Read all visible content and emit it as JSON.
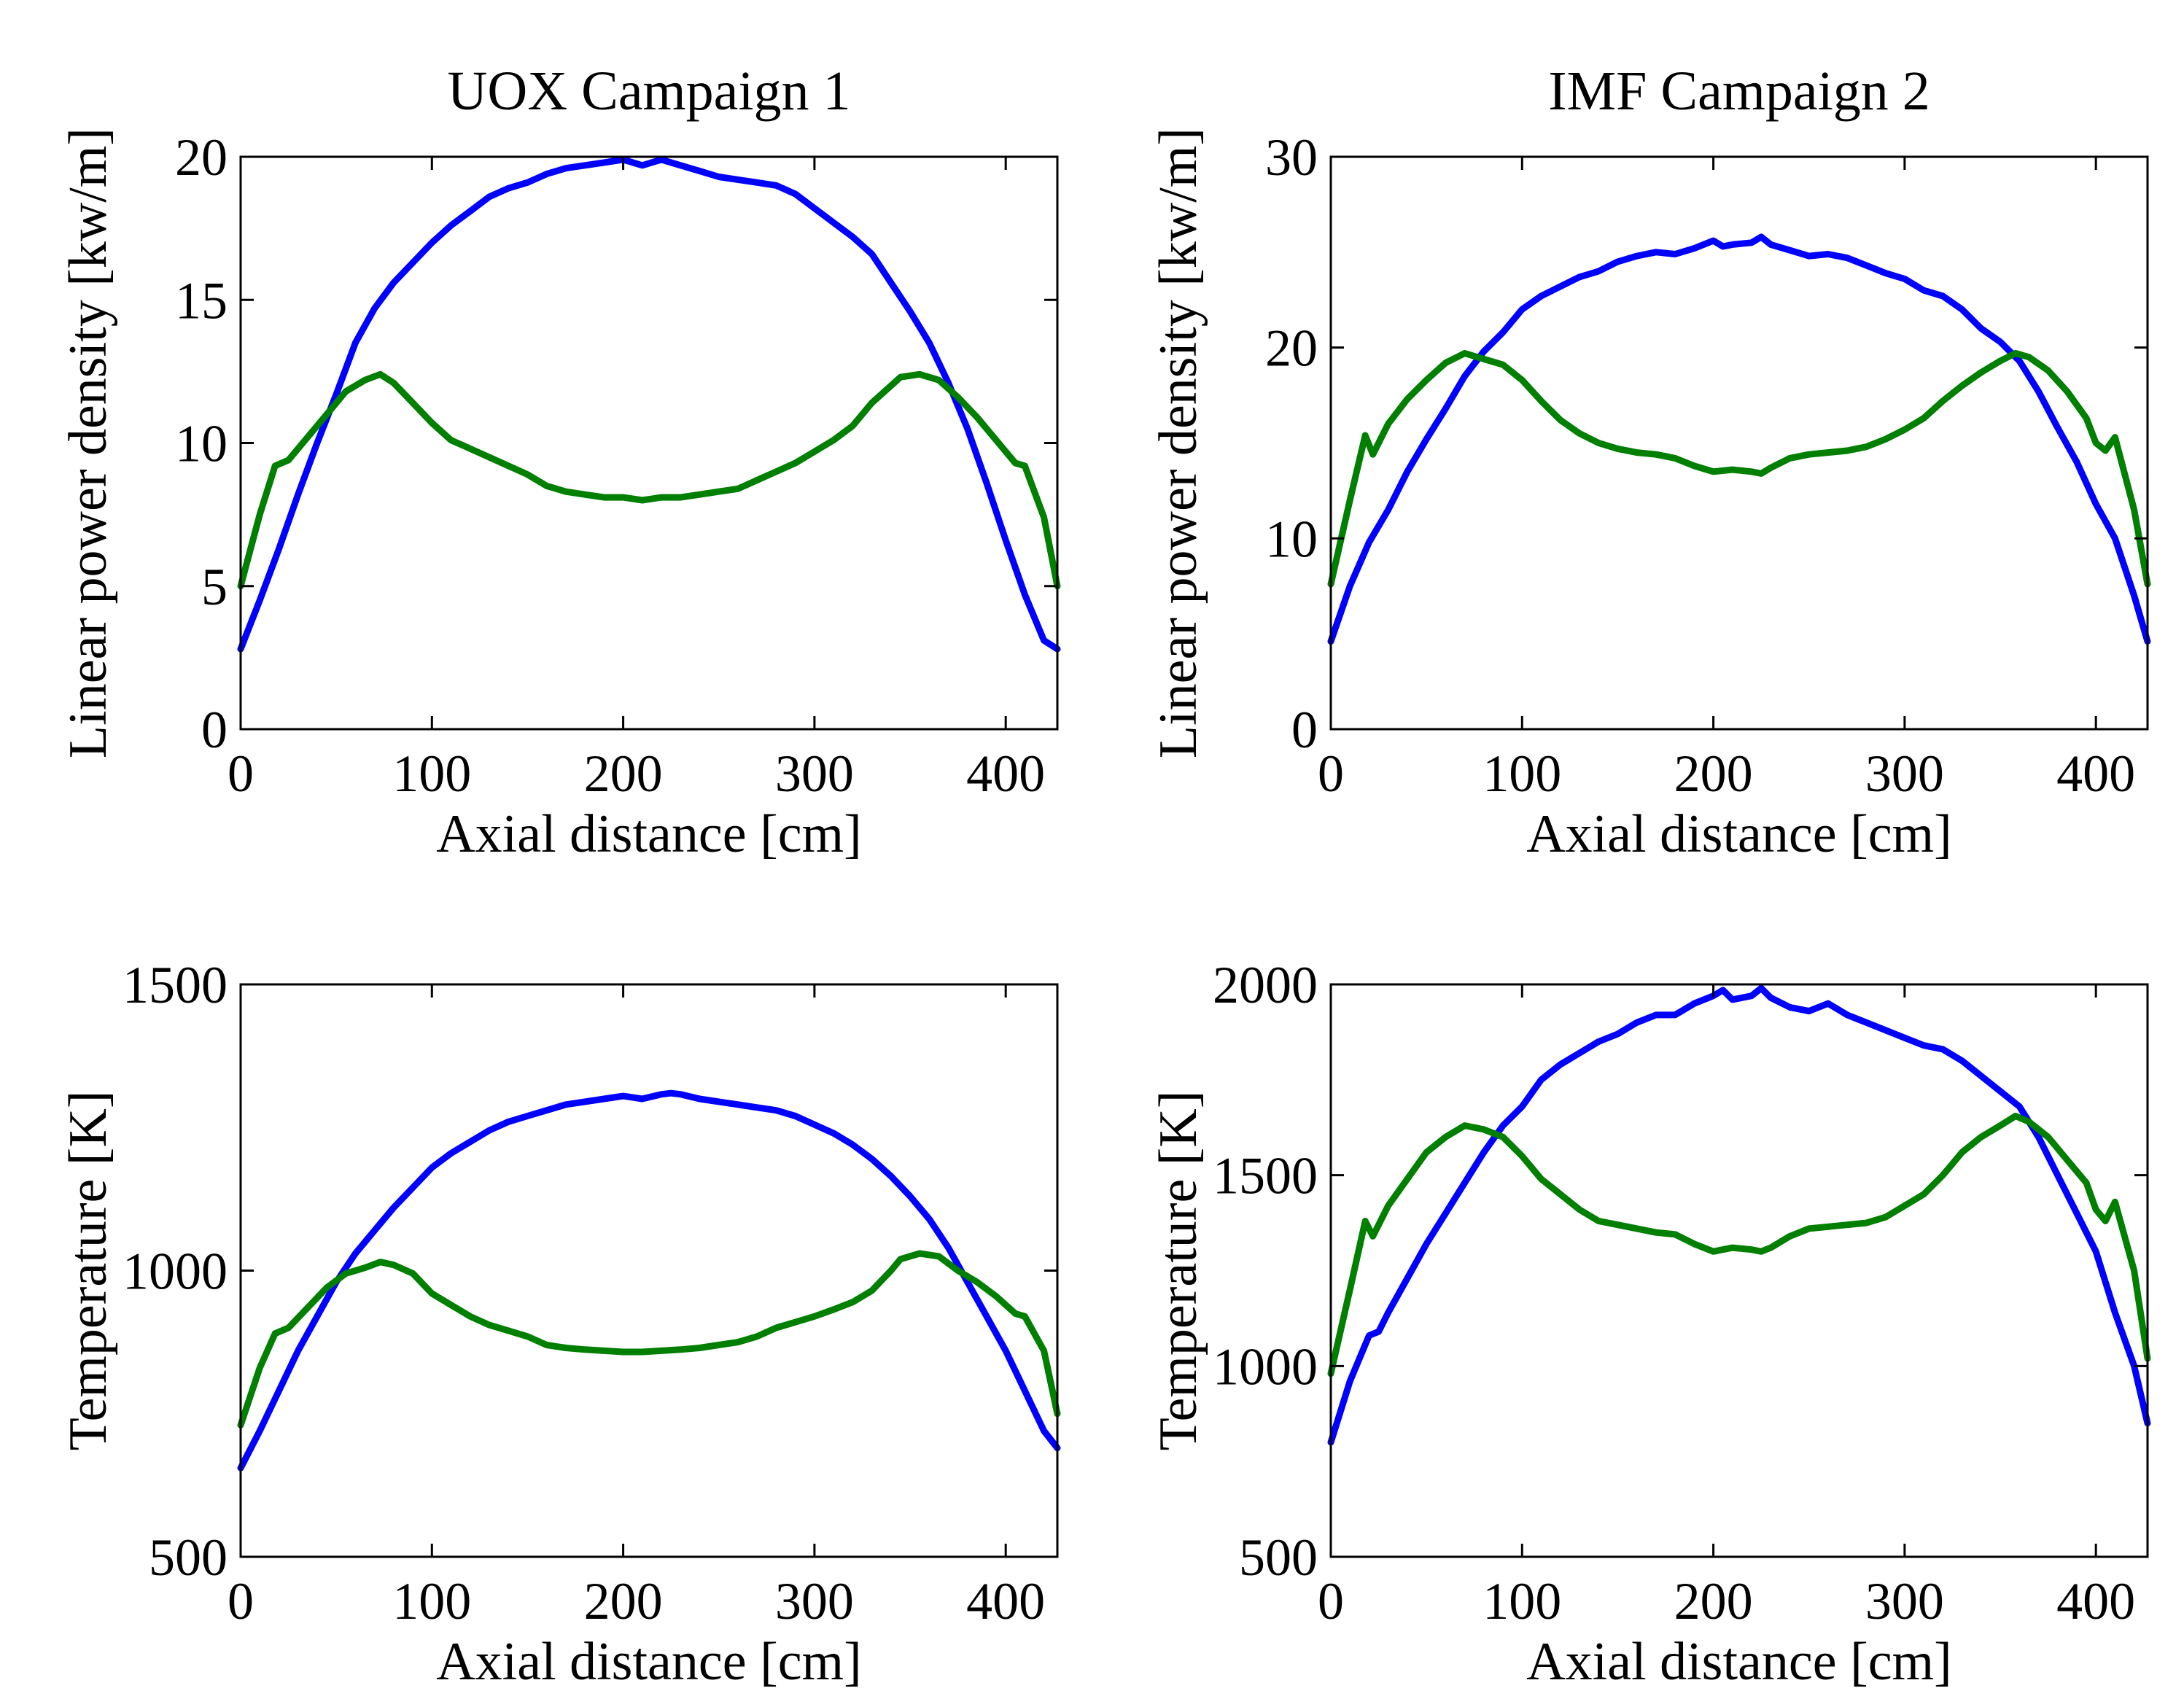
{
  "colors": {
    "blue": "#0000ff",
    "green": "#007f00",
    "axes": "#000000"
  },
  "chart_data": [
    {
      "type": "line",
      "title": "UOX Campaign 1",
      "xlabel": "Axial distance [cm]",
      "ylabel": "Linear power density [kw/m]",
      "xlim": [
        0,
        427
      ],
      "ylim": [
        0,
        20
      ],
      "xticks": [
        0,
        100,
        200,
        300,
        400
      ],
      "xtick_labels": [
        "0",
        "100",
        "200",
        "300",
        "400"
      ],
      "yticks": [
        0,
        5,
        10,
        15,
        20
      ],
      "ytick_labels": [
        "0",
        "5",
        "10",
        "15",
        "20"
      ],
      "grid": false,
      "series": [
        {
          "name": "blue",
          "color": "#0000ff",
          "x": [
            0,
            10,
            20,
            30,
            40,
            50,
            60,
            70,
            80,
            90,
            100,
            110,
            120,
            130,
            140,
            150,
            160,
            170,
            180,
            190,
            200,
            210,
            220,
            230,
            240,
            250,
            260,
            270,
            280,
            290,
            300,
            310,
            320,
            330,
            340,
            350,
            360,
            370,
            380,
            390,
            400,
            410,
            420,
            427
          ],
          "values": [
            2.8,
            4.5,
            6.3,
            8.2,
            10.0,
            11.7,
            13.5,
            14.7,
            15.6,
            16.3,
            17.0,
            17.6,
            18.1,
            18.6,
            18.9,
            19.1,
            19.4,
            19.6,
            19.7,
            19.8,
            19.9,
            19.7,
            19.9,
            19.7,
            19.5,
            19.3,
            19.2,
            19.1,
            19.0,
            18.7,
            18.2,
            17.7,
            17.2,
            16.6,
            15.6,
            14.6,
            13.5,
            12.1,
            10.5,
            8.6,
            6.6,
            4.7,
            3.1,
            2.8
          ]
        },
        {
          "name": "green",
          "color": "#007f00",
          "x": [
            0,
            10,
            18,
            25,
            35,
            45,
            55,
            65,
            73,
            80,
            90,
            100,
            110,
            120,
            130,
            140,
            150,
            160,
            170,
            180,
            190,
            200,
            210,
            220,
            230,
            240,
            250,
            260,
            270,
            280,
            290,
            300,
            310,
            320,
            330,
            340,
            345,
            355,
            365,
            375,
            385,
            395,
            405,
            410,
            420,
            427
          ],
          "values": [
            5.0,
            7.5,
            9.2,
            9.4,
            10.2,
            11.0,
            11.8,
            12.2,
            12.4,
            12.1,
            11.4,
            10.7,
            10.1,
            9.8,
            9.5,
            9.2,
            8.9,
            8.5,
            8.3,
            8.2,
            8.1,
            8.1,
            8.0,
            8.1,
            8.1,
            8.2,
            8.3,
            8.4,
            8.7,
            9.0,
            9.3,
            9.7,
            10.1,
            10.6,
            11.4,
            12.0,
            12.3,
            12.4,
            12.2,
            11.6,
            10.9,
            10.1,
            9.3,
            9.2,
            7.4,
            5.0
          ]
        }
      ]
    },
    {
      "type": "line",
      "title": "IMF Campaign 2",
      "xlabel": "Axial distance [cm]",
      "ylabel": "Linear power density [kw/m]",
      "xlim": [
        0,
        427
      ],
      "ylim": [
        0,
        30
      ],
      "xticks": [
        0,
        100,
        200,
        300,
        400
      ],
      "xtick_labels": [
        "0",
        "100",
        "200",
        "300",
        "400"
      ],
      "yticks": [
        0,
        10,
        20,
        30
      ],
      "ytick_labels": [
        "0",
        "10",
        "20",
        "30"
      ],
      "grid": false,
      "series": [
        {
          "name": "blue",
          "color": "#0000ff",
          "x": [
            0,
            10,
            20,
            30,
            40,
            50,
            60,
            70,
            80,
            90,
            100,
            110,
            120,
            130,
            140,
            150,
            160,
            170,
            180,
            190,
            200,
            205,
            210,
            220,
            225,
            230,
            240,
            250,
            260,
            270,
            280,
            290,
            300,
            310,
            320,
            330,
            340,
            350,
            360,
            370,
            380,
            390,
            400,
            410,
            420,
            427
          ],
          "values": [
            4.6,
            7.5,
            9.8,
            11.5,
            13.5,
            15.2,
            16.8,
            18.5,
            19.8,
            20.8,
            22.0,
            22.7,
            23.2,
            23.7,
            24.0,
            24.5,
            24.8,
            25.0,
            24.9,
            25.2,
            25.6,
            25.3,
            25.4,
            25.5,
            25.8,
            25.4,
            25.1,
            24.8,
            24.9,
            24.7,
            24.3,
            23.9,
            23.6,
            23.0,
            22.7,
            22.0,
            21.0,
            20.3,
            19.3,
            17.7,
            15.8,
            14.0,
            11.8,
            10.0,
            7.0,
            4.6
          ]
        },
        {
          "name": "green",
          "color": "#007f00",
          "x": [
            0,
            10,
            18,
            22,
            30,
            40,
            50,
            60,
            70,
            80,
            90,
            100,
            110,
            120,
            130,
            140,
            150,
            160,
            170,
            180,
            190,
            200,
            210,
            220,
            225,
            230,
            240,
            250,
            260,
            270,
            280,
            290,
            300,
            310,
            320,
            330,
            340,
            350,
            358,
            365,
            375,
            385,
            395,
            400,
            405,
            410,
            420,
            427
          ],
          "values": [
            7.6,
            12.0,
            15.4,
            14.4,
            16.0,
            17.3,
            18.3,
            19.2,
            19.7,
            19.4,
            19.1,
            18.3,
            17.2,
            16.2,
            15.5,
            15.0,
            14.7,
            14.5,
            14.4,
            14.2,
            13.8,
            13.5,
            13.6,
            13.5,
            13.4,
            13.7,
            14.2,
            14.4,
            14.5,
            14.6,
            14.8,
            15.2,
            15.7,
            16.3,
            17.2,
            18.0,
            18.7,
            19.3,
            19.7,
            19.5,
            18.8,
            17.7,
            16.3,
            15.0,
            14.6,
            15.3,
            11.5,
            7.6
          ]
        }
      ]
    },
    {
      "type": "line",
      "title": "",
      "xlabel": "Axial distance [cm]",
      "ylabel": "Temperature [K]",
      "xlim": [
        0,
        427
      ],
      "ylim": [
        500,
        1500
      ],
      "xticks": [
        0,
        100,
        200,
        300,
        400
      ],
      "xtick_labels": [
        "0",
        "100",
        "200",
        "300",
        "400"
      ],
      "yticks": [
        500,
        1000,
        1500
      ],
      "ytick_labels": [
        "500",
        "1000",
        "1500"
      ],
      "grid": false,
      "series": [
        {
          "name": "blue",
          "color": "#0000ff",
          "x": [
            0,
            10,
            20,
            30,
            40,
            50,
            60,
            70,
            80,
            90,
            100,
            110,
            120,
            130,
            140,
            150,
            160,
            170,
            180,
            190,
            200,
            210,
            220,
            225,
            230,
            240,
            250,
            260,
            270,
            280,
            290,
            300,
            310,
            320,
            330,
            340,
            350,
            360,
            370,
            380,
            390,
            400,
            410,
            420,
            427
          ],
          "values": [
            655,
            720,
            790,
            860,
            920,
            980,
            1030,
            1070,
            1110,
            1145,
            1180,
            1205,
            1225,
            1245,
            1260,
            1270,
            1280,
            1290,
            1295,
            1300,
            1305,
            1300,
            1308,
            1310,
            1308,
            1300,
            1295,
            1290,
            1285,
            1280,
            1270,
            1255,
            1240,
            1220,
            1195,
            1165,
            1130,
            1090,
            1040,
            980,
            920,
            860,
            790,
            720,
            690
          ]
        },
        {
          "name": "green",
          "color": "#007f00",
          "x": [
            0,
            10,
            18,
            25,
            35,
            45,
            55,
            65,
            73,
            80,
            90,
            100,
            110,
            120,
            130,
            140,
            150,
            160,
            170,
            180,
            190,
            200,
            210,
            220,
            230,
            240,
            250,
            260,
            270,
            280,
            290,
            300,
            310,
            320,
            330,
            340,
            345,
            355,
            365,
            375,
            385,
            395,
            405,
            410,
            420,
            427
          ],
          "values": [
            730,
            830,
            890,
            900,
            935,
            970,
            995,
            1005,
            1015,
            1010,
            995,
            960,
            940,
            920,
            905,
            895,
            885,
            870,
            865,
            862,
            860,
            858,
            858,
            860,
            862,
            865,
            870,
            875,
            885,
            900,
            910,
            920,
            932,
            945,
            965,
            1000,
            1020,
            1030,
            1025,
            1000,
            980,
            955,
            925,
            920,
            860,
            750
          ]
        }
      ]
    },
    {
      "type": "line",
      "title": "",
      "xlabel": "Axial distance [cm]",
      "ylabel": "Temperature [K]",
      "xlim": [
        0,
        427
      ],
      "ylim": [
        500,
        2000
      ],
      "xticks": [
        0,
        100,
        200,
        300,
        400
      ],
      "xtick_labels": [
        "0",
        "100",
        "200",
        "300",
        "400"
      ],
      "yticks": [
        500,
        1000,
        1500,
        2000
      ],
      "ytick_labels": [
        "500",
        "1000",
        "1500",
        "2000"
      ],
      "grid": false,
      "series": [
        {
          "name": "blue",
          "color": "#0000ff",
          "x": [
            0,
            10,
            20,
            25,
            30,
            40,
            50,
            60,
            70,
            80,
            90,
            100,
            110,
            120,
            130,
            140,
            150,
            160,
            170,
            180,
            190,
            200,
            205,
            210,
            220,
            225,
            230,
            240,
            250,
            260,
            270,
            280,
            290,
            300,
            310,
            320,
            330,
            340,
            350,
            360,
            370,
            380,
            390,
            400,
            405,
            410,
            420,
            427
          ],
          "values": [
            800,
            960,
            1080,
            1090,
            1140,
            1230,
            1320,
            1400,
            1480,
            1560,
            1630,
            1680,
            1750,
            1790,
            1820,
            1850,
            1870,
            1900,
            1920,
            1920,
            1950,
            1970,
            1985,
            1960,
            1970,
            1990,
            1965,
            1940,
            1930,
            1950,
            1920,
            1900,
            1880,
            1860,
            1840,
            1830,
            1800,
            1760,
            1720,
            1680,
            1600,
            1500,
            1400,
            1300,
            1220,
            1140,
            1000,
            850
          ]
        },
        {
          "name": "green",
          "color": "#007f00",
          "x": [
            0,
            10,
            18,
            22,
            30,
            40,
            50,
            60,
            70,
            80,
            90,
            100,
            110,
            120,
            130,
            140,
            150,
            160,
            170,
            180,
            190,
            200,
            210,
            220,
            225,
            230,
            240,
            250,
            260,
            270,
            280,
            290,
            300,
            310,
            320,
            330,
            340,
            350,
            358,
            365,
            375,
            385,
            395,
            400,
            405,
            410,
            420,
            427
          ],
          "values": [
            980,
            1200,
            1380,
            1340,
            1420,
            1490,
            1560,
            1600,
            1630,
            1620,
            1600,
            1550,
            1490,
            1450,
            1410,
            1380,
            1370,
            1360,
            1350,
            1345,
            1320,
            1300,
            1310,
            1305,
            1300,
            1310,
            1340,
            1360,
            1365,
            1370,
            1375,
            1390,
            1420,
            1450,
            1500,
            1560,
            1600,
            1630,
            1655,
            1640,
            1600,
            1540,
            1480,
            1410,
            1380,
            1430,
            1250,
            1020
          ]
        }
      ]
    }
  ]
}
